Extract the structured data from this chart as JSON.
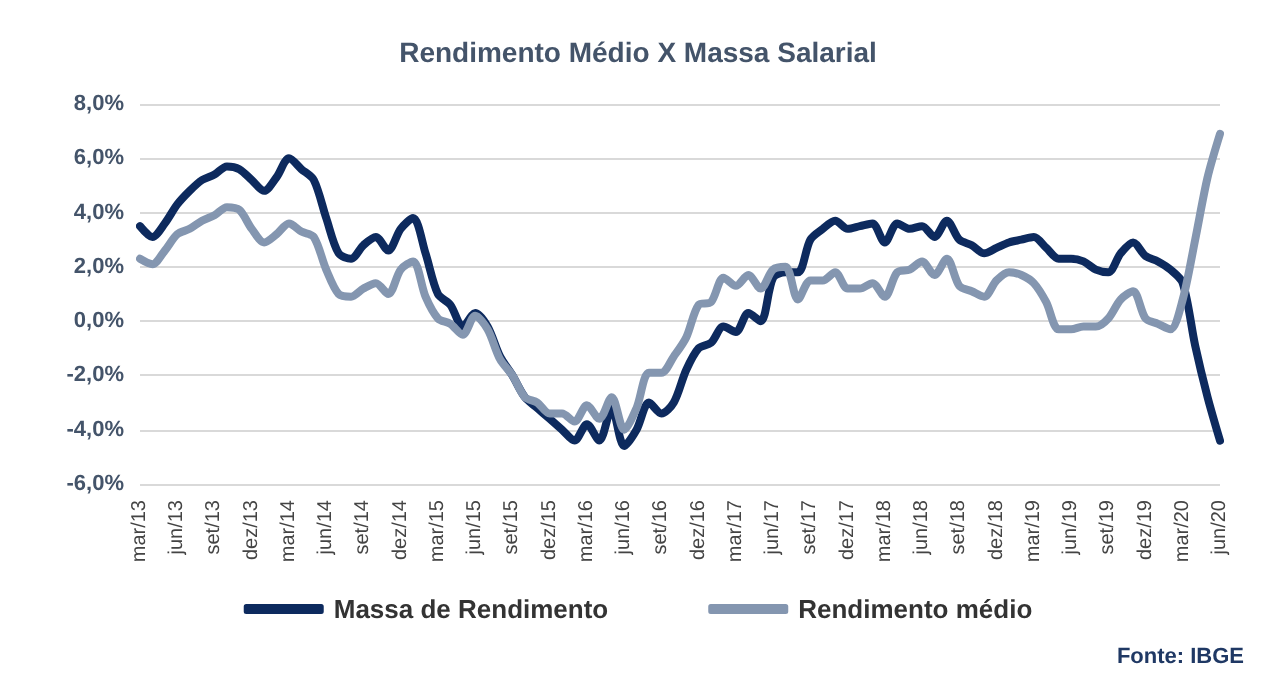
{
  "chart_data": {
    "type": "line",
    "title": "Rendimento Médio X Massa Salarial",
    "categories": [
      "mar/13",
      null,
      null,
      "jun/13",
      null,
      null,
      "set/13",
      null,
      null,
      "dez/13",
      null,
      null,
      "mar/14",
      null,
      null,
      "jun/14",
      null,
      null,
      "set/14",
      null,
      null,
      "dez/14",
      null,
      null,
      "mar/15",
      null,
      null,
      "jun/15",
      null,
      null,
      "set/15",
      null,
      null,
      "dez/15",
      null,
      null,
      "mar/16",
      null,
      null,
      "jun/16",
      null,
      null,
      "set/16",
      null,
      null,
      "dez/16",
      null,
      null,
      "mar/17",
      null,
      null,
      "jun/17",
      null,
      null,
      "set/17",
      null,
      null,
      "dez/17",
      null,
      null,
      "mar/18",
      null,
      null,
      "jun/18",
      null,
      null,
      "set/18",
      null,
      null,
      "dez/18",
      null,
      null,
      "mar/19",
      null,
      null,
      "jun/19",
      null,
      null,
      "set/19",
      null,
      null,
      "dez/19",
      null,
      null,
      "mar/20",
      null,
      null,
      "jun/20"
    ],
    "series": [
      {
        "name": "Massa de Rendimento",
        "color": "#0d2a5e",
        "values": [
          3.5,
          3.1,
          3.6,
          4.3,
          4.8,
          5.2,
          5.4,
          5.7,
          5.6,
          5.2,
          4.8,
          5.3,
          6.0,
          5.6,
          5.2,
          3.8,
          2.5,
          2.3,
          2.8,
          3.1,
          2.6,
          3.4,
          3.8,
          2.5,
          1.0,
          0.6,
          -0.2,
          0.3,
          -0.2,
          -1.3,
          -2.0,
          -2.8,
          -3.2,
          -3.6,
          -4.0,
          -4.4,
          -3.8,
          -4.4,
          -3.2,
          -4.6,
          -4.0,
          -3.0,
          -3.4,
          -3.0,
          -1.8,
          -1.0,
          -0.8,
          -0.2,
          -0.4,
          0.3,
          0.0,
          1.6,
          1.8,
          1.8,
          3.0,
          3.4,
          3.7,
          3.4,
          3.5,
          3.6,
          2.9,
          3.6,
          3.4,
          3.5,
          3.1,
          3.7,
          3.0,
          2.8,
          2.5,
          2.7,
          2.9,
          3.0,
          3.1,
          2.7,
          2.3,
          2.3,
          2.2,
          1.9,
          1.8,
          2.5,
          2.9,
          2.4,
          2.2,
          1.9,
          1.4,
          -0.9,
          -2.8,
          -4.4
        ]
      },
      {
        "name": "Rendimento médio",
        "color": "#8496b0",
        "values": [
          2.3,
          2.1,
          2.6,
          3.2,
          3.4,
          3.7,
          3.9,
          4.2,
          4.1,
          3.4,
          2.9,
          3.2,
          3.6,
          3.3,
          3.1,
          1.9,
          1.0,
          0.9,
          1.2,
          1.4,
          1.0,
          1.9,
          2.2,
          0.9,
          0.1,
          -0.1,
          -0.5,
          0.2,
          -0.3,
          -1.4,
          -2.0,
          -2.8,
          -3.0,
          -3.4,
          -3.4,
          -3.7,
          -3.1,
          -3.6,
          -2.8,
          -4.0,
          -3.2,
          -1.9,
          -1.9,
          -1.3,
          -0.6,
          0.6,
          0.7,
          1.6,
          1.3,
          1.7,
          1.2,
          1.9,
          2.0,
          0.8,
          1.5,
          1.5,
          1.8,
          1.2,
          1.2,
          1.4,
          0.9,
          1.8,
          1.9,
          2.2,
          1.7,
          2.3,
          1.3,
          1.1,
          0.9,
          1.5,
          1.8,
          1.7,
          1.4,
          0.7,
          -0.3,
          -0.3,
          -0.2,
          -0.2,
          0.1,
          0.8,
          1.1,
          0.1,
          -0.1,
          -0.3,
          0.8,
          3.0,
          5.3,
          6.9
        ]
      }
    ],
    "ylim": [
      -6,
      8
    ],
    "yticks": [
      {
        "value": -6,
        "label": "-6,0%"
      },
      {
        "value": -4,
        "label": "-4,0%"
      },
      {
        "value": -2,
        "label": "-2,0%"
      },
      {
        "value": 0,
        "label": "0,0%"
      },
      {
        "value": 2,
        "label": "2,0%"
      },
      {
        "value": 4,
        "label": "4,0%"
      },
      {
        "value": 6,
        "label": "6,0%"
      },
      {
        "value": 8,
        "label": "8,0%"
      }
    ],
    "grid": "y",
    "legend": "bottom",
    "marker": "none",
    "line_style": "solid",
    "annotations": [
      "Fonte: IBGE"
    ]
  }
}
